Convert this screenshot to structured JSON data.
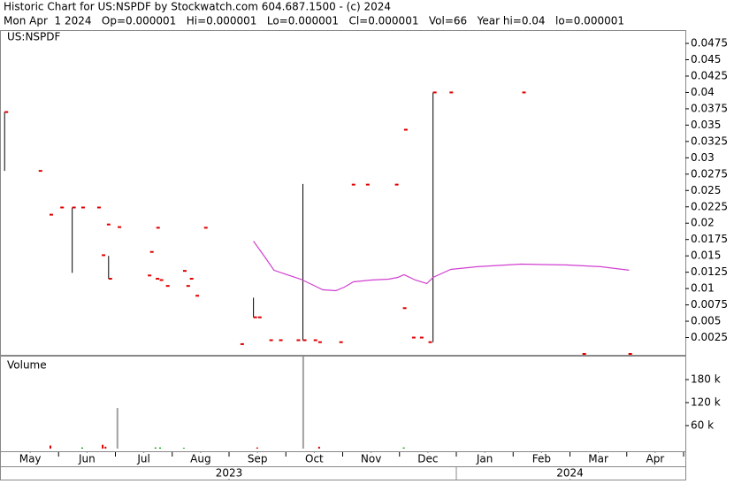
{
  "chart_data": {
    "type": "ohlc",
    "title": "Historic Chart for US:NSPDF by Stockwatch.com 604.687.1500 - (c) 2024",
    "subtitle": "Mon Apr  1 2024   Op=0.000001   Hi=0.000001   Lo=0.000001   Cl=0.000001   Vol=66   Year hi=0.04   lo=0.000001",
    "symbol": "US:NSPDF",
    "xlim": [
      0,
      12
    ],
    "xticks": [
      {
        "value": 0.5,
        "label": "May"
      },
      {
        "value": 1.5,
        "label": "Jun"
      },
      {
        "value": 2.5,
        "label": "Jul"
      },
      {
        "value": 3.5,
        "label": "Aug"
      },
      {
        "value": 4.5,
        "label": "Sep"
      },
      {
        "value": 5.5,
        "label": "Oct"
      },
      {
        "value": 6.5,
        "label": "Nov"
      },
      {
        "value": 7.5,
        "label": "Dec"
      },
      {
        "value": 8.5,
        "label": "Jan"
      },
      {
        "value": 9.5,
        "label": "Feb"
      },
      {
        "value": 10.5,
        "label": "Mar"
      },
      {
        "value": 11.5,
        "label": "Apr"
      }
    ],
    "year_ticks": [
      {
        "value": 4,
        "label": "2023"
      },
      {
        "value": 10,
        "label": "2024"
      }
    ],
    "ylim": [
      0,
      0.0494
    ],
    "yticks": [
      0.0025,
      0.005,
      0.0075,
      0.01,
      0.0125,
      0.015,
      0.0175,
      0.02,
      0.0225,
      0.025,
      0.0275,
      0.03,
      0.0325,
      0.035,
      0.0375,
      0.04,
      0.0425,
      0.045,
      0.0475
    ],
    "bars": {
      "color": "#e00000",
      "range_color": "#000000",
      "x": [
        0.05,
        0.65,
        0.84,
        1.03,
        1.24,
        1.4,
        1.68,
        1.76,
        1.88,
        1.85,
        2.04,
        2.61,
        2.72,
        2.57,
        2.71,
        2.78,
        2.89,
        3.19,
        3.31,
        3.25,
        3.41,
        3.56,
        4.2,
        4.43,
        4.51,
        4.71,
        4.88,
        5.19,
        5.3,
        5.49,
        5.57,
        5.94,
        6.16,
        6.41,
        6.92,
        7.08,
        7.06,
        7.22,
        7.36,
        7.51,
        7.59,
        7.88,
        9.16,
        10.22,
        11.03
      ],
      "high": [
        0.037,
        0.028,
        0.0213,
        0.0224,
        0.0224,
        0.0224,
        0.0224,
        0.0151,
        0.015,
        0.0198,
        0.0194,
        0.0156,
        0.0193,
        0.012,
        0.0115,
        0.0113,
        0.0104,
        0.0127,
        0.0115,
        0.0104,
        0.0089,
        0.0193,
        0.0015,
        0.0086,
        0.0056,
        0.0021,
        0.0021,
        0.0021,
        0.026,
        0.0021,
        0.0018,
        0.0018,
        0.0259,
        0.0259,
        0.0259,
        0.0343,
        0.007,
        0.0025,
        0.0025,
        0.0018,
        0.04,
        0.04,
        0.04,
        1e-06,
        1e-06
      ],
      "low": [
        0.028,
        0.028,
        0.0213,
        0.0224,
        0.0124,
        0.0224,
        0.0224,
        0.0151,
        0.0115,
        0.0198,
        0.0194,
        0.0156,
        0.0193,
        0.012,
        0.0115,
        0.0113,
        0.0104,
        0.0127,
        0.0115,
        0.0104,
        0.0089,
        0.0193,
        0.0015,
        0.0056,
        0.0056,
        0.0021,
        0.0021,
        0.0021,
        0.0021,
        0.0021,
        0.0018,
        0.0018,
        0.0259,
        0.0259,
        0.0259,
        0.0343,
        0.007,
        0.0025,
        0.0025,
        0.0018,
        0.0018,
        0.04,
        0.04,
        1e-06,
        1e-06
      ],
      "close": [
        0.037,
        0.028,
        0.0213,
        0.0224,
        0.0224,
        0.0224,
        0.0224,
        0.0151,
        0.0115,
        0.0198,
        0.0194,
        0.0156,
        0.0193,
        0.012,
        0.0115,
        0.0113,
        0.0104,
        0.0127,
        0.0115,
        0.0104,
        0.0089,
        0.0193,
        0.0015,
        0.0056,
        0.0056,
        0.0021,
        0.0021,
        0.0021,
        0.0021,
        0.0021,
        0.0018,
        0.0018,
        0.0259,
        0.0259,
        0.0259,
        0.0343,
        0.007,
        0.0025,
        0.0025,
        0.0018,
        0.04,
        0.04,
        0.04,
        1e-06,
        1e-06
      ]
    },
    "average": {
      "color": "#d040d0",
      "x": [
        4.43,
        4.63,
        4.79,
        5.02,
        5.26,
        5.49,
        5.65,
        5.88,
        6.03,
        6.19,
        6.5,
        6.81,
        6.97,
        7.08,
        7.28,
        7.48,
        7.59,
        7.9,
        8.37,
        9.14,
        9.92,
        10.54,
        11.04
      ],
      "values": [
        0.01726,
        0.01482,
        0.0128,
        0.01212,
        0.01144,
        0.01049,
        0.00981,
        0.00968,
        0.01022,
        0.01103,
        0.0113,
        0.01144,
        0.01171,
        0.01212,
        0.0113,
        0.01076,
        0.01171,
        0.01293,
        0.01334,
        0.01374,
        0.01361,
        0.01334,
        0.0128
      ]
    },
    "volume": {
      "label": "Volume",
      "ylim": [
        0,
        240000
      ],
      "yticks": [
        {
          "value": 60000,
          "label": "60 k"
        },
        {
          "value": 120000,
          "label": "120 k"
        },
        {
          "value": 180000,
          "label": "180 k"
        }
      ],
      "x": [
        0.84,
        1.4,
        1.76,
        1.81,
        2.02,
        2.69,
        2.77,
        3.19,
        4.48,
        5.29,
        5.57,
        7.06
      ],
      "values": [
        8000,
        3000,
        10000,
        5000,
        106000,
        3000,
        3000,
        2000,
        3000,
        240000,
        5000,
        3000
      ],
      "colors": [
        "#e00000",
        "#00a000",
        "#e00000",
        "#e00000",
        "#a0a0a0",
        "#00a000",
        "#00a000",
        "#00a000",
        "#e00000",
        "#a0a0a0",
        "#e00000",
        "#00a000"
      ]
    }
  }
}
